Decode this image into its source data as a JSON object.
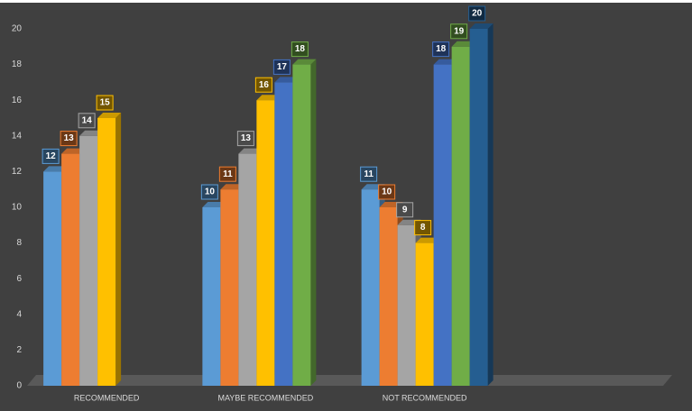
{
  "chart_data": {
    "type": "bar",
    "categories": [
      "RECOMMENDED",
      "MAYBE RECOMMENDED",
      "NOT RECOMMENDED",
      null
    ],
    "series": [
      {
        "color": "#5b9bd5",
        "values": [
          12,
          10,
          11,
          null
        ]
      },
      {
        "color": "#ed7d31",
        "values": [
          13,
          11,
          10,
          null
        ]
      },
      {
        "color": "#a5a5a5",
        "values": [
          14,
          13,
          9,
          null
        ]
      },
      {
        "color": "#ffc000",
        "values": [
          15,
          16,
          8,
          null
        ]
      },
      {
        "color": "#4472c4",
        "values": [
          null,
          17,
          18,
          null
        ]
      },
      {
        "color": "#70ad47",
        "values": [
          null,
          18,
          19,
          null
        ]
      },
      {
        "color": "#255e91",
        "values": [
          null,
          null,
          20,
          null
        ]
      }
    ],
    "ylim": [
      0,
      20
    ],
    "yticks": [
      0,
      2,
      4,
      6,
      8,
      10,
      12,
      14,
      16,
      18,
      20
    ],
    "grid": false
  }
}
